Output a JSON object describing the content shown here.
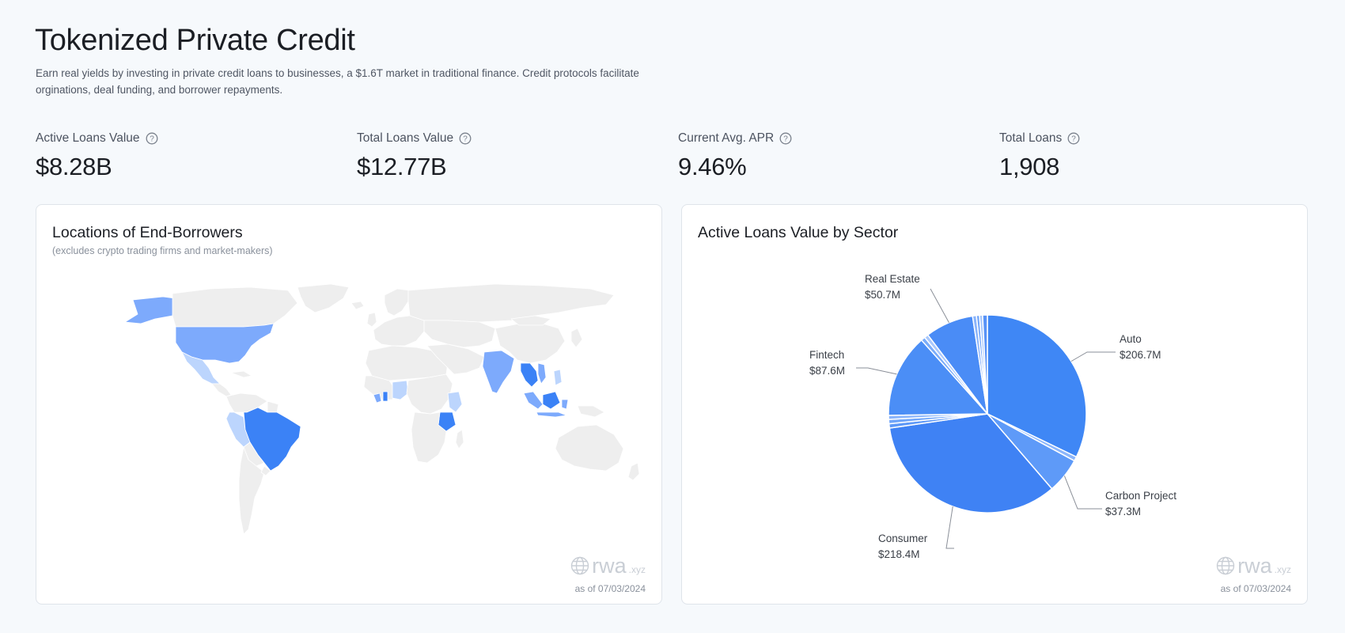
{
  "header": {
    "title": "Tokenized Private Credit",
    "description": "Earn real yields by investing in private credit loans to businesses, a $1.6T market in traditional finance. Credit protocols facilitate orginations, deal funding, and borrower repayments."
  },
  "stats": [
    {
      "label": "Active Loans Value",
      "value": "$8.28B",
      "icon": "help-icon"
    },
    {
      "label": "Total Loans Value",
      "value": "$12.77B",
      "icon": "help-icon"
    },
    {
      "label": "Current Avg. APR",
      "value": "9.46%",
      "icon": "help-icon"
    },
    {
      "label": "Total Loans",
      "value": "1,908",
      "icon": "help-icon"
    }
  ],
  "map_card": {
    "title": "Locations of End-Borrowers",
    "subtitle": "(excludes crypto trading firms and market-makers)",
    "brand": "rwa",
    "brand_tld": ".xyz",
    "as_of": "as of 07/03/2024",
    "colors": {
      "land": "#eeeeee",
      "border": "#ffffff",
      "high": "#3b82f6",
      "mid": "#7daafc",
      "low": "#bcd5fd"
    }
  },
  "pie_card": {
    "title": "Active Loans Value by Sector",
    "brand": "rwa",
    "brand_tld": ".xyz",
    "as_of": "as of 07/03/2024"
  },
  "chart_data": {
    "type": "pie",
    "title": "Active Loans Value by Sector",
    "slices": [
      {
        "label": "Auto",
        "value": 206.7,
        "display": "$206.7M",
        "color": "#3f87f5",
        "labeled": true
      },
      {
        "label": "",
        "value": 4.5,
        "display": "",
        "color": "#8cb6fb",
        "labeled": false
      },
      {
        "label": "Carbon Project",
        "value": 37.3,
        "display": "$37.3M",
        "color": "#5e9af8",
        "labeled": true
      },
      {
        "label": "Consumer",
        "value": 218.4,
        "display": "$218.4M",
        "color": "#3f82f4",
        "labeled": true
      },
      {
        "label": "",
        "value": 4.5,
        "display": "",
        "color": "#5d98f7",
        "labeled": false
      },
      {
        "label": "",
        "value": 4.5,
        "display": "",
        "color": "#70a5f9",
        "labeled": false
      },
      {
        "label": "",
        "value": 4.2,
        "display": "",
        "color": "#8bb5fb",
        "labeled": false
      },
      {
        "label": "Fintech",
        "value": 87.6,
        "display": "$87.6M",
        "color": "#4b8ef6",
        "labeled": true
      },
      {
        "label": "",
        "value": 4.3,
        "display": "",
        "color": "#7aacfa",
        "labeled": false
      },
      {
        "label": "",
        "value": 4.2,
        "display": "",
        "color": "#a9c8fc",
        "labeled": false
      },
      {
        "label": "Real Estate",
        "value": 50.7,
        "display": "$50.7M",
        "color": "#4a8cf6",
        "labeled": true
      },
      {
        "label": "",
        "value": 4.0,
        "display": "",
        "color": "#8ab4fb",
        "labeled": false
      },
      {
        "label": "",
        "value": 3.2,
        "display": "",
        "color": "#6ea3f9",
        "labeled": false
      },
      {
        "label": "",
        "value": 3.2,
        "display": "",
        "color": "#a5c6fc",
        "labeled": false
      },
      {
        "label": "",
        "value": 5.0,
        "display": "",
        "color": "#5893f7",
        "labeled": false
      }
    ]
  }
}
